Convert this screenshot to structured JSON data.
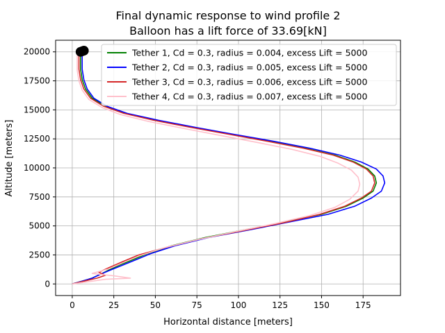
{
  "chart_data": {
    "type": "line",
    "title": "Final dynamic response to wind profile 2",
    "subtitle": "Balloon has a lift force of 33.69[kN]",
    "xlabel": "Horizontal distance [meters]",
    "ylabel": "Altitude [meters]",
    "xlim": [
      -10,
      197.5
    ],
    "ylim": [
      -1000,
      21000
    ],
    "xticks": [
      0,
      25,
      50,
      75,
      100,
      125,
      150,
      175
    ],
    "yticks": [
      0,
      2500,
      5000,
      7500,
      10000,
      12500,
      15000,
      17500,
      20000
    ],
    "xtick_labels": [
      "0",
      "25",
      "50",
      "75",
      "100",
      "125",
      "150",
      "175"
    ],
    "ytick_labels": [
      "0",
      "2500",
      "5000",
      "7500",
      "10000",
      "12500",
      "15000",
      "17500",
      "20000"
    ],
    "grid": true,
    "legend_position": "top-right",
    "series": [
      {
        "name": "Tether 1, Cd = 0.3, radius = 0.004, excess Lift = 5000",
        "color": "#008000",
        "x": [
          0,
          5,
          12,
          18,
          22,
          28,
          35,
          45,
          60,
          80,
          105,
          130,
          150,
          165,
          175,
          181,
          183,
          182,
          178,
          170,
          158,
          140,
          118,
          95,
          72,
          50,
          32,
          20,
          12,
          8,
          6,
          5,
          5
        ],
        "y": [
          0,
          200,
          500,
          900,
          1200,
          1600,
          2000,
          2600,
          3300,
          4000,
          4700,
          5400,
          6000,
          6700,
          7400,
          8000,
          8700,
          9300,
          9900,
          10500,
          11100,
          11700,
          12300,
          12900,
          13500,
          14100,
          14700,
          15300,
          16000,
          16800,
          17600,
          18500,
          20000
        ]
      },
      {
        "name": "Tether 2, Cd = 0.3, radius = 0.005, excess Lift = 5000",
        "color": "#0000ff",
        "x": [
          0,
          5,
          12,
          18,
          23,
          30,
          37,
          47,
          62,
          82,
          108,
          133,
          154,
          170,
          180,
          186,
          188,
          187,
          183,
          174,
          161,
          143,
          121,
          97,
          74,
          52,
          33,
          21,
          13,
          9,
          7,
          6,
          6
        ],
        "y": [
          0,
          200,
          500,
          900,
          1200,
          1600,
          2000,
          2600,
          3300,
          4000,
          4700,
          5400,
          6000,
          6700,
          7400,
          8000,
          8700,
          9300,
          9900,
          10500,
          11100,
          11700,
          12300,
          12900,
          13500,
          14100,
          14700,
          15300,
          16000,
          16800,
          17600,
          18500,
          20000
        ]
      },
      {
        "name": "Tether 3, Cd = 0.3, radius = 0.006, excess Lift = 5000",
        "color": "#d62728",
        "x": [
          0,
          6,
          15,
          20,
          16,
          22,
          30,
          40,
          58,
          78,
          103,
          128,
          149,
          164,
          174,
          180,
          182,
          181,
          177,
          169,
          157,
          139,
          117,
          94,
          71,
          49,
          31,
          19,
          11,
          7,
          5,
          4,
          4
        ],
        "y": [
          0,
          200,
          500,
          750,
          1000,
          1400,
          1900,
          2500,
          3200,
          3900,
          4600,
          5300,
          6000,
          6700,
          7400,
          8000,
          8700,
          9300,
          9900,
          10500,
          11100,
          11700,
          12300,
          12900,
          13500,
          14100,
          14700,
          15300,
          16000,
          16800,
          17600,
          18500,
          20000
        ]
      },
      {
        "name": "Tether 4, Cd = 0.3, radius = 0.007, excess Lift = 5000",
        "color": "#ffc0cb",
        "x": [
          0,
          20,
          35,
          25,
          12,
          22,
          30,
          40,
          55,
          75,
          98,
          122,
          143,
          158,
          167,
          172,
          173,
          172,
          168,
          160,
          149,
          132,
          111,
          89,
          67,
          46,
          29,
          18,
          10,
          6,
          4,
          3,
          3
        ],
        "y": [
          0,
          400,
          500,
          700,
          900,
          1300,
          1800,
          2400,
          3100,
          3800,
          4500,
          5200,
          5900,
          6600,
          7300,
          8000,
          8600,
          9200,
          9800,
          10400,
          11000,
          11600,
          12200,
          12800,
          13400,
          14000,
          14600,
          15200,
          15900,
          16700,
          17500,
          18400,
          20000
        ]
      }
    ],
    "balloons": [
      {
        "x": 5,
        "y": 20000
      },
      {
        "x": 6,
        "y": 20050
      },
      {
        "x": 7,
        "y": 20100
      }
    ]
  }
}
